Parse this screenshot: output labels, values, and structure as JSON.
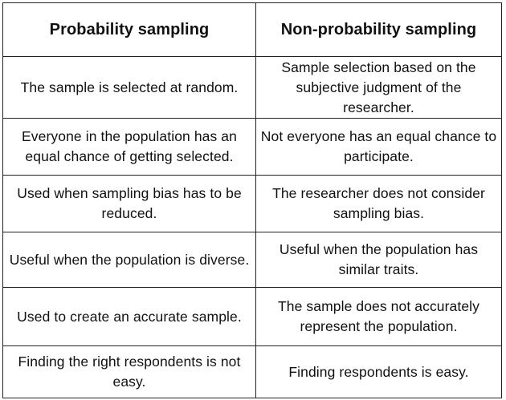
{
  "table": {
    "headers": [
      "Probability sampling",
      "Non-probability sampling"
    ],
    "rows": [
      [
        "The sample is selected at random.",
        "Sample selection based on the subjective judgment of the researcher."
      ],
      [
        "Everyone in the population has an equal chance of getting selected.",
        "Not everyone has an equal chance to participate."
      ],
      [
        "Used when sampling bias has to be reduced.",
        "The researcher does not consider sampling bias."
      ],
      [
        "Useful when the population is diverse.",
        "Useful when the population has similar traits."
      ],
      [
        "Used to create an accurate sample.",
        "The sample does not accurately represent the population."
      ],
      [
        "Finding the right respondents is not easy.",
        "Finding respondents is easy."
      ]
    ]
  }
}
